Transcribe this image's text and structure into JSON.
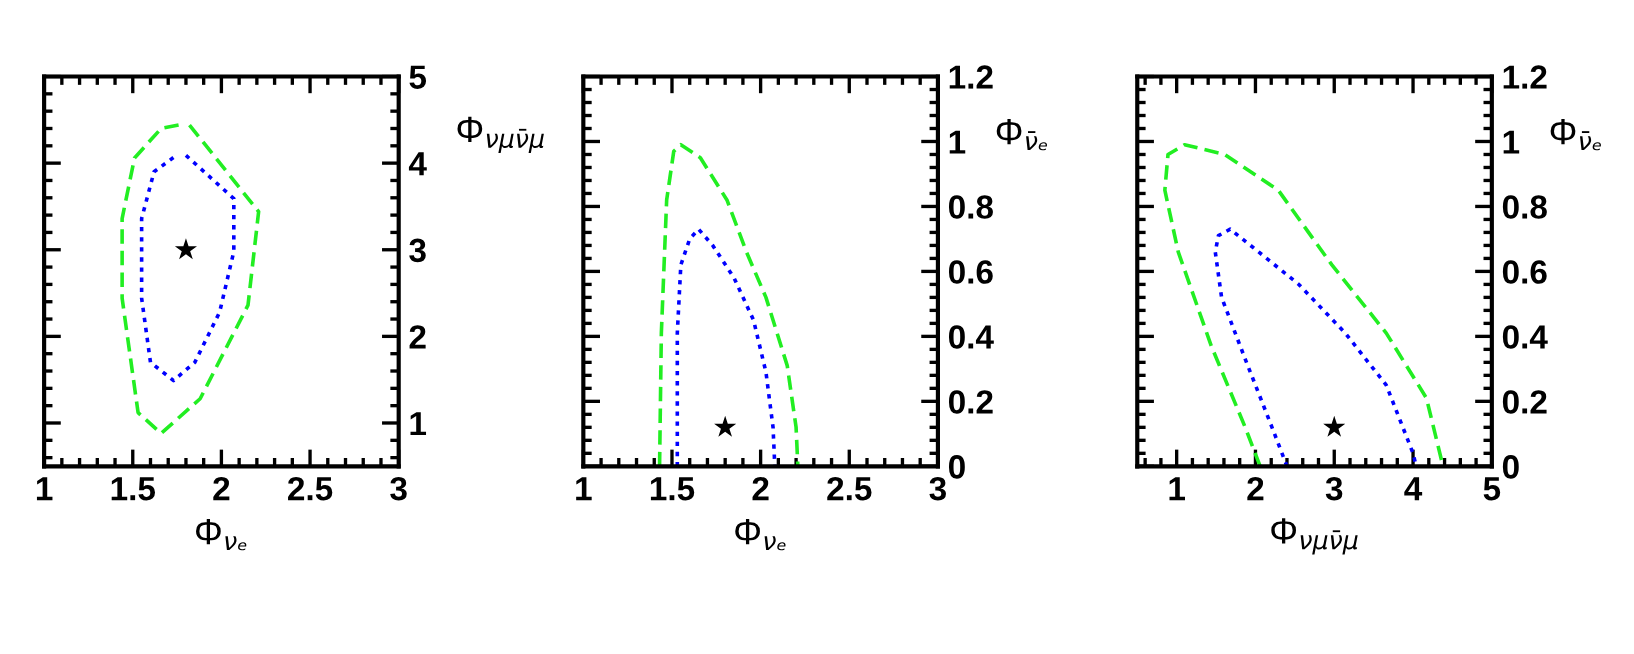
{
  "chart_data": [
    {
      "type": "line",
      "xlabel": "Φ$_{νₑ}$",
      "ylabel": "Φ$_{νμν̄μ}$",
      "xlim": [
        1,
        3
      ],
      "ylim": [
        0.5,
        5
      ],
      "xticks": [
        1,
        1.5,
        2,
        2.5,
        3
      ],
      "yticks": [
        1,
        2,
        3,
        4,
        5
      ],
      "grid": false,
      "legend": false,
      "series": [
        {
          "color": "#22ee22",
          "line_style": "dashed",
          "marker": "none",
          "x": [
            1.82,
            2.21,
            2.15,
            1.88,
            1.66,
            1.53,
            1.44,
            1.44,
            1.51,
            1.66,
            1.76
          ],
          "values": [
            4.44,
            3.44,
            2.36,
            1.28,
            0.88,
            1.12,
            2.44,
            3.36,
            4.06,
            4.4,
            4.44
          ]
        },
        {
          "color": "#0000ff",
          "line_style": "dotted",
          "marker": "none",
          "x": [
            1.8,
            2.07,
            2.07,
            1.99,
            1.85,
            1.73,
            1.6,
            1.55,
            1.55,
            1.62,
            1.74
          ],
          "values": [
            4.09,
            3.59,
            2.98,
            2.28,
            1.7,
            1.49,
            1.7,
            2.44,
            3.36,
            3.9,
            4.08
          ]
        },
        {
          "type": "scatter",
          "color": "#000000",
          "marker": "star",
          "x": [
            1.8
          ],
          "values": [
            3.0
          ]
        }
      ]
    },
    {
      "type": "line",
      "xlabel": "Φ$_{νₑ}$",
      "ylabel": "Φ$_{ν̄ₑ}$",
      "xlim": [
        1,
        3
      ],
      "ylim": [
        0,
        1.2
      ],
      "xticks": [
        1,
        1.5,
        2,
        2.5,
        3
      ],
      "yticks": [
        0,
        0.2,
        0.4,
        0.6,
        0.8,
        1,
        1.2
      ],
      "grid": false,
      "legend": false,
      "series": [
        {
          "color": "#22ee22",
          "line_style": "dashed",
          "marker": "none",
          "x": [
            1.43,
            1.44,
            1.47,
            1.51,
            1.55,
            1.66,
            1.81,
            1.92,
            2.03,
            2.15,
            2.2,
            2.21
          ],
          "values": [
            0,
            0.41,
            0.82,
            0.97,
            0.99,
            0.95,
            0.82,
            0.66,
            0.52,
            0.31,
            0.12,
            0
          ]
        },
        {
          "color": "#0000ff",
          "line_style": "dotted",
          "marker": "none",
          "x": [
            1.53,
            1.53,
            1.55,
            1.6,
            1.65,
            1.73,
            1.85,
            1.96,
            2.03,
            2.07,
            2.08
          ],
          "values": [
            0,
            0.41,
            0.62,
            0.7,
            0.73,
            0.68,
            0.58,
            0.45,
            0.29,
            0.12,
            0
          ]
        },
        {
          "type": "scatter",
          "color": "#000000",
          "marker": "star",
          "x": [
            1.8
          ],
          "values": [
            0.12
          ]
        }
      ]
    },
    {
      "type": "line",
      "xlabel": "Φ$_{νμν̄μ}$",
      "ylabel": "Φ$_{ν̄ₑ}$",
      "xlim": [
        0.5,
        5
      ],
      "ylim": [
        0,
        1.2
      ],
      "xticks": [
        1,
        2,
        3,
        4,
        5
      ],
      "yticks": [
        0,
        0.2,
        0.4,
        0.6,
        0.8,
        1,
        1.2
      ],
      "grid": false,
      "legend": false,
      "series": [
        {
          "color": "#22ee22",
          "line_style": "dashed",
          "marker": "none",
          "x": [
            2.06,
            1.87,
            1.44,
            1.02,
            0.85,
            0.89,
            1.1,
            1.61,
            2.29,
            2.97,
            3.66,
            4.17,
            4.38
          ],
          "values": [
            0,
            0.12,
            0.37,
            0.66,
            0.85,
            0.96,
            0.99,
            0.96,
            0.85,
            0.62,
            0.41,
            0.21,
            0
          ]
        },
        {
          "color": "#0000ff",
          "line_style": "dotted",
          "marker": "none",
          "x": [
            2.4,
            2.21,
            1.87,
            1.57,
            1.49,
            1.53,
            1.68,
            2.04,
            2.55,
            3.14,
            3.66,
            4.0,
            4.04
          ],
          "values": [
            0,
            0.12,
            0.33,
            0.52,
            0.66,
            0.71,
            0.73,
            0.66,
            0.56,
            0.41,
            0.25,
            0.04,
            0
          ]
        },
        {
          "type": "scatter",
          "color": "#000000",
          "marker": "star",
          "x": [
            3.0
          ],
          "values": [
            0.12
          ]
        }
      ]
    }
  ]
}
